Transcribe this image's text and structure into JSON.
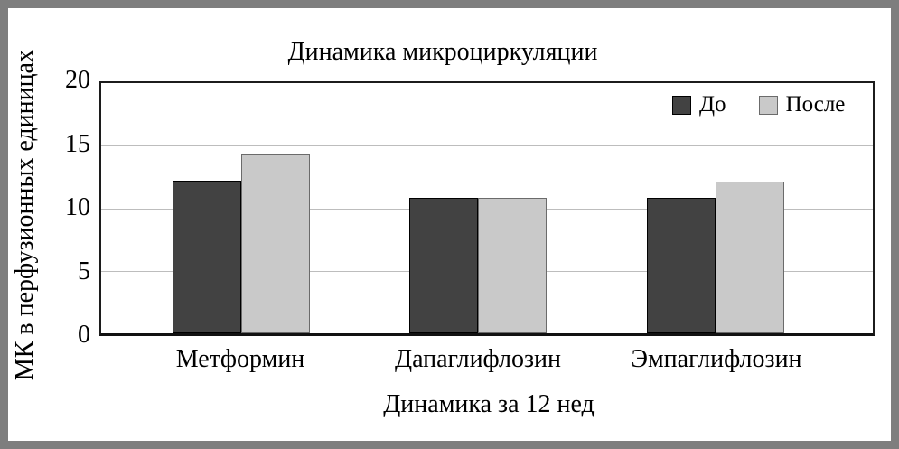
{
  "frame_color": "#7e7e7e",
  "chart_data": {
    "type": "bar",
    "title": "Динамика микроциркуляции",
    "xlabel": "Динамика за 12 нед",
    "ylabel": "МК в перфузионных единицах",
    "categories": [
      "Метформин",
      "Дапаглифлозин",
      "Эмпаглифлозин"
    ],
    "series": [
      {
        "name": "До",
        "color": "#424242",
        "border_color": "#000000",
        "values": [
          12.2,
          10.8,
          10.8
        ]
      },
      {
        "name": "После",
        "color": "#c9c9c9",
        "border_color": "#6b6b6b",
        "values": [
          14.3,
          10.8,
          12.1
        ]
      }
    ],
    "ylim": [
      0,
      20
    ],
    "yticks": [
      0,
      5,
      10,
      15,
      20
    ],
    "grid": true,
    "legend_position": "top-right",
    "gridline_color": "#bdbdbd"
  }
}
